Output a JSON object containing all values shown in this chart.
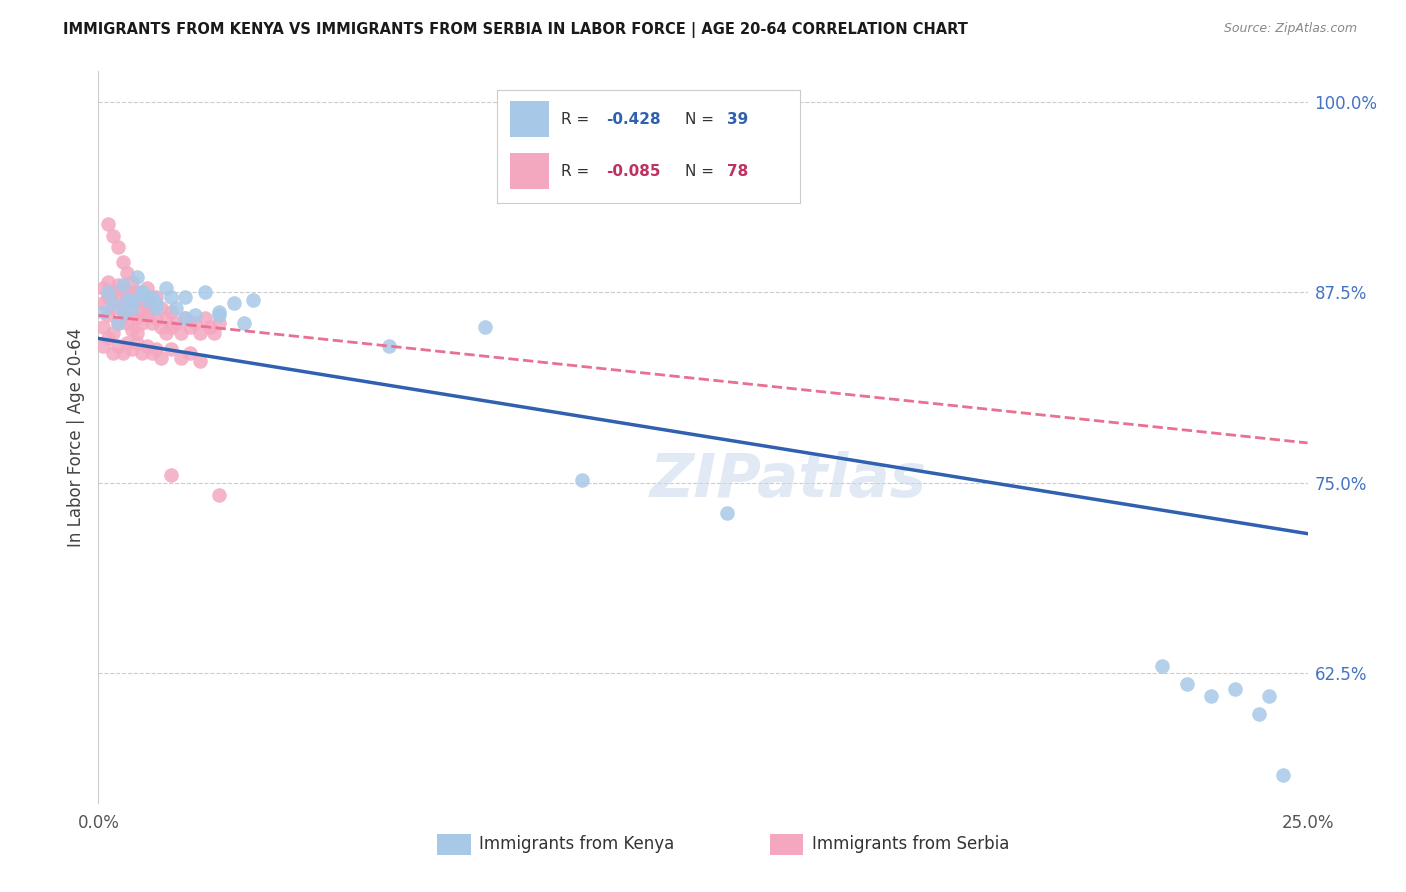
{
  "title": "IMMIGRANTS FROM KENYA VS IMMIGRANTS FROM SERBIA IN LABOR FORCE | AGE 20-64 CORRELATION CHART",
  "source": "Source: ZipAtlas.com",
  "ylabel": "In Labor Force | Age 20-64",
  "xlim": [
    0.0,
    0.25
  ],
  "ylim": [
    0.54,
    1.02
  ],
  "kenya_R": -0.428,
  "kenya_N": 39,
  "serbia_R": -0.085,
  "serbia_N": 78,
  "kenya_color": "#a8c8e8",
  "serbia_color": "#f4a8c0",
  "kenya_line_color": "#3060b0",
  "serbia_line_color": "#e87090",
  "watermark": "ZIPatlas",
  "kenya_x": [
    0.001,
    0.002,
    0.003,
    0.004,
    0.005,
    0.006,
    0.007,
    0.008,
    0.009,
    0.01,
    0.011,
    0.012,
    0.014,
    0.016,
    0.018,
    0.02,
    0.022,
    0.025,
    0.028,
    0.032,
    0.005,
    0.007,
    0.009,
    0.012,
    0.015,
    0.018,
    0.025,
    0.03,
    0.06,
    0.08,
    0.1,
    0.13,
    0.22,
    0.225,
    0.23,
    0.235,
    0.24,
    0.242,
    0.245
  ],
  "kenya_y": [
    0.862,
    0.875,
    0.868,
    0.855,
    0.88,
    0.87,
    0.865,
    0.885,
    0.875,
    0.87,
    0.872,
    0.868,
    0.878,
    0.865,
    0.872,
    0.86,
    0.875,
    0.862,
    0.868,
    0.87,
    0.862,
    0.87,
    0.875,
    0.865,
    0.872,
    0.858,
    0.86,
    0.855,
    0.84,
    0.852,
    0.752,
    0.73,
    0.63,
    0.618,
    0.61,
    0.615,
    0.598,
    0.61,
    0.558
  ],
  "serbia_x": [
    0.001,
    0.001,
    0.001,
    0.002,
    0.002,
    0.002,
    0.003,
    0.003,
    0.003,
    0.004,
    0.004,
    0.004,
    0.005,
    0.005,
    0.005,
    0.006,
    0.006,
    0.006,
    0.007,
    0.007,
    0.007,
    0.008,
    0.008,
    0.008,
    0.009,
    0.009,
    0.009,
    0.01,
    0.01,
    0.01,
    0.011,
    0.011,
    0.012,
    0.012,
    0.013,
    0.013,
    0.014,
    0.014,
    0.015,
    0.015,
    0.016,
    0.017,
    0.018,
    0.019,
    0.02,
    0.021,
    0.022,
    0.023,
    0.024,
    0.025,
    0.001,
    0.002,
    0.003,
    0.004,
    0.005,
    0.006,
    0.007,
    0.008,
    0.009,
    0.01,
    0.011,
    0.012,
    0.013,
    0.015,
    0.017,
    0.019,
    0.021,
    0.002,
    0.003,
    0.004,
    0.005,
    0.006,
    0.007,
    0.008,
    0.009,
    0.01,
    0.015,
    0.025
  ],
  "serbia_y": [
    0.852,
    0.868,
    0.878,
    0.86,
    0.872,
    0.882,
    0.848,
    0.865,
    0.875,
    0.855,
    0.87,
    0.88,
    0.862,
    0.878,
    0.858,
    0.868,
    0.855,
    0.872,
    0.85,
    0.862,
    0.875,
    0.858,
    0.87,
    0.848,
    0.862,
    0.872,
    0.855,
    0.86,
    0.868,
    0.878,
    0.855,
    0.865,
    0.858,
    0.872,
    0.852,
    0.865,
    0.858,
    0.848,
    0.862,
    0.852,
    0.855,
    0.848,
    0.858,
    0.852,
    0.855,
    0.848,
    0.858,
    0.852,
    0.848,
    0.855,
    0.84,
    0.845,
    0.835,
    0.84,
    0.835,
    0.842,
    0.838,
    0.842,
    0.835,
    0.84,
    0.835,
    0.838,
    0.832,
    0.838,
    0.832,
    0.835,
    0.83,
    0.92,
    0.912,
    0.905,
    0.895,
    0.888,
    0.882,
    0.875,
    0.87,
    0.865,
    0.755,
    0.742
  ]
}
